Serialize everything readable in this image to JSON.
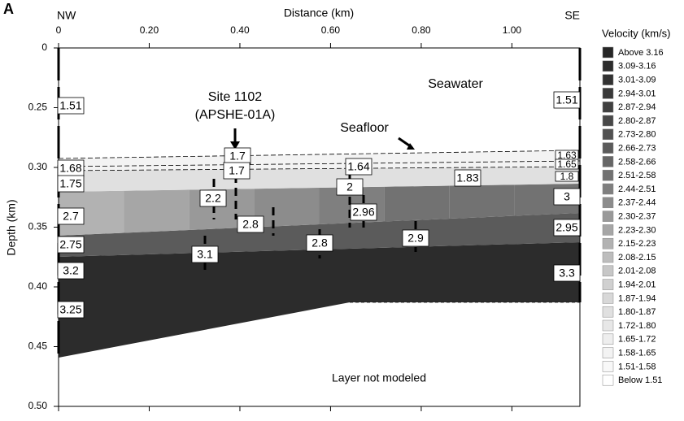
{
  "chart_data": {
    "type": "section",
    "panel_label": "A",
    "x_label": "Distance (km)",
    "y_label": "Depth (km)",
    "left_end_label": "NW",
    "right_end_label": "SE",
    "xlim": [
      0,
      1.15
    ],
    "xticks": [
      0,
      {
        "value": 0.2,
        "label": "0.20"
      },
      {
        "value": 0.4,
        "label": "0.40"
      },
      {
        "value": 0.6,
        "label": "0.60"
      },
      {
        "value": 0.8,
        "label": "0.80"
      },
      {
        "value": 1.0,
        "label": "1.00"
      }
    ],
    "ylim": [
      0,
      {
        "value": 0.5,
        "label": "0.50"
      }
    ],
    "yticks": [
      0,
      0.25,
      {
        "value": 0.3,
        "label": "0.30"
      },
      0.35,
      {
        "value": 0.4,
        "label": "0.40"
      },
      0.45,
      {
        "value": 0.5,
        "label": "0.50"
      }
    ],
    "annotations": [
      "Site 1102",
      "(APSHE-01A)",
      "Seawater",
      "Seafloor",
      "Layer not modeled"
    ],
    "velocity_labels": [
      "1.51",
      "1.68",
      "1.75",
      "2.7",
      "2.75",
      "3.2",
      "3.25",
      "1.7",
      "1.7",
      "2.2",
      "2.8",
      "3.1",
      "1.64",
      "2",
      "2.96",
      "2.8",
      "2.9",
      "1.83",
      "1.51",
      "1.63",
      "1.65",
      "1.8",
      "3",
      "2.95",
      "3.3"
    ],
    "legend": {
      "title": "Velocity (km/s)",
      "items": [
        {
          "label": "Above 3.16",
          "color": "#262626"
        },
        {
          "label": "3.09-3.16",
          "color": "#2c2c2c"
        },
        {
          "label": "3.01-3.09",
          "color": "#323232"
        },
        {
          "label": "2.94-3.01",
          "color": "#393939"
        },
        {
          "label": "2.87-2.94",
          "color": "#404040"
        },
        {
          "label": "2.80-2.87",
          "color": "#484848"
        },
        {
          "label": "2.73-2.80",
          "color": "#515151"
        },
        {
          "label": "2.66-2.73",
          "color": "#5b5b5b"
        },
        {
          "label": "2.58-2.66",
          "color": "#666666"
        },
        {
          "label": "2.51-2.58",
          "color": "#727272"
        },
        {
          "label": "2.44-2.51",
          "color": "#7f7f7f"
        },
        {
          "label": "2.37-2.44",
          "color": "#8c8c8c"
        },
        {
          "label": "2.30-2.37",
          "color": "#999999"
        },
        {
          "label": "2.23-2.30",
          "color": "#a6a6a6"
        },
        {
          "label": "2.15-2.23",
          "color": "#b2b2b2"
        },
        {
          "label": "2.08-2.15",
          "color": "#bdbdbd"
        },
        {
          "label": "2.01-2.08",
          "color": "#c7c7c7"
        },
        {
          "label": "1.94-2.01",
          "color": "#d0d0d0"
        },
        {
          "label": "1.87-1.94",
          "color": "#d8d8d8"
        },
        {
          "label": "1.80-1.87",
          "color": "#e0e0e0"
        },
        {
          "label": "1.72-1.80",
          "color": "#e7e7e7"
        },
        {
          "label": "1.65-1.72",
          "color": "#eeeeee"
        },
        {
          "label": "1.58-1.65",
          "color": "#f3f3f3"
        },
        {
          "label": "1.51-1.58",
          "color": "#f8f8f8"
        },
        {
          "label": "Below 1.51",
          "color": "#ffffff"
        }
      ]
    }
  }
}
